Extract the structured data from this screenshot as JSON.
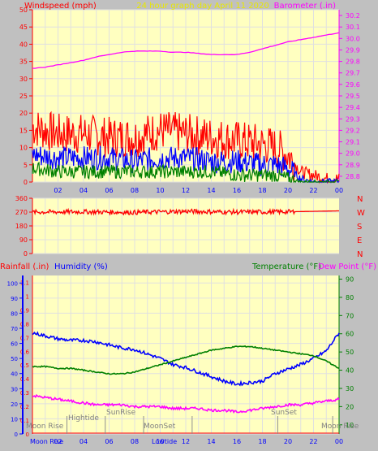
{
  "header": {
    "left_label": "Windspeed (mph)",
    "center_title": "24 hour graph day   April 11 2020",
    "right_label": "Barometer (.in)"
  },
  "middle_panel": {
    "direction_letters": [
      "N",
      "W",
      "S",
      "E",
      "N"
    ]
  },
  "lower_header": {
    "rainfall_label": "Rainfall (.in)",
    "humidity_label": "Humidity (%)",
    "temperature_label": "Temperature (°F)",
    "dewpoint_label": "Dew Point (°F)"
  },
  "events": {
    "moonrise": "Moon Rise",
    "hightide": "Hightide",
    "sunrise": "SunRise",
    "moonset": "MoonSet",
    "sunset": "SunSet",
    "moonrise_right": "Moon Rise",
    "bottom_moonrise": "Moon Rise",
    "bottom_lowtide": "Lowtide"
  },
  "colors": {
    "panel_bg": "#ffffc0",
    "window_bg": "#c0c0c0",
    "grid": "#e0e0e0",
    "windspeed": "#ff0000",
    "wind_avg": "#0000ff",
    "wind_min": "#008000",
    "barometer": "#ff00ff",
    "direction": "#ff0000",
    "humidity": "#0000ff",
    "temperature": "#008000",
    "dewpoint": "#ff00ff",
    "rainfall": "#ff0000"
  },
  "chart_data": [
    {
      "type": "line",
      "name_top": "wind-barometer",
      "x_ticks": [
        "02",
        "04",
        "06",
        "08",
        "10",
        "12",
        "14",
        "16",
        "18",
        "20",
        "22",
        "00"
      ],
      "y_left_ticks": [
        0,
        5,
        10,
        15,
        20,
        25,
        30,
        35,
        40,
        45,
        50
      ],
      "y_left_range": [
        0,
        50
      ],
      "y_right_ticks": [
        28.8,
        28.9,
        29.0,
        29.1,
        29.2,
        29.3,
        29.4,
        29.5,
        29.6,
        29.7,
        29.8,
        29.9,
        30.0,
        30.1,
        30.2
      ],
      "y_right_range": [
        28.75,
        30.25
      ],
      "series": [
        {
          "x": [
            0,
            1,
            2,
            3,
            4,
            5,
            6,
            7,
            8,
            9,
            10,
            11,
            12,
            13,
            14,
            15,
            16,
            17,
            18,
            19,
            20,
            21,
            22,
            23,
            24
          ],
          "values": [
            29.74,
            29.75,
            29.77,
            29.79,
            29.81,
            29.84,
            29.86,
            29.88,
            29.89,
            29.89,
            29.89,
            29.88,
            29.88,
            29.87,
            29.86,
            29.86,
            29.86,
            29.88,
            29.91,
            29.94,
            29.97,
            29.99,
            30.01,
            30.03,
            30.05
          ]
        },
        {
          "x": [
            0,
            2,
            4,
            6,
            8,
            10,
            12,
            14,
            16,
            18,
            19,
            20,
            21,
            22,
            23,
            24
          ],
          "values": [
            16,
            14,
            14,
            13,
            13,
            15,
            14,
            13,
            12,
            11,
            10,
            8,
            3,
            2,
            1,
            1
          ]
        },
        {
          "x": [
            0,
            2,
            4,
            6,
            8,
            10,
            12,
            14,
            16,
            18,
            19,
            20,
            21,
            22,
            23,
            24
          ],
          "values": [
            8,
            7,
            7,
            7,
            6,
            7,
            7,
            6,
            6,
            5,
            5,
            4,
            1,
            0,
            0,
            0
          ]
        },
        {
          "x": [
            0,
            2,
            4,
            6,
            8,
            10,
            12,
            14,
            16,
            18,
            19,
            20,
            21,
            22,
            23,
            24
          ],
          "values": [
            4,
            3,
            3,
            3,
            3,
            3,
            3,
            3,
            2,
            2,
            2,
            1,
            0,
            0,
            0,
            0
          ]
        }
      ]
    },
    {
      "type": "line",
      "name_top": "wind-direction",
      "y_ticks": [
        0,
        90,
        180,
        270,
        360
      ],
      "y_range": [
        0,
        360
      ],
      "series": [
        {
          "x": [
            0,
            4,
            8,
            12,
            16,
            20,
            24
          ],
          "values": [
            270,
            272,
            268,
            275,
            270,
            272,
            278
          ]
        }
      ]
    },
    {
      "type": "line",
      "name_top": "humidity-temperature",
      "x_ticks": [
        "02",
        "04",
        "06",
        "08",
        "10",
        "12",
        "14",
        "16",
        "18",
        "20",
        "22",
        "00"
      ],
      "y_rain_ticks": [
        0,
        0.1,
        0.2,
        0.3,
        0.4,
        0.5,
        0.6,
        0.7,
        0.8,
        0.9,
        1.0,
        1.1
      ],
      "y_rain_range": [
        0,
        1.15
      ],
      "y_hum_ticks": [
        0,
        10,
        20,
        30,
        40,
        50,
        60,
        70,
        80,
        90,
        100
      ],
      "y_hum_range": [
        0,
        105
      ],
      "y_temp_ticks": [
        10,
        20,
        30,
        40,
        50,
        60,
        70,
        80,
        90
      ],
      "y_temp_range": [
        5,
        92
      ],
      "series": [
        {
          "x": [
            0,
            1,
            2,
            3,
            4,
            5,
            6,
            7,
            8,
            9,
            10,
            11,
            12,
            13,
            14,
            15,
            16,
            17,
            18,
            19,
            20,
            21,
            22,
            23,
            24
          ],
          "values": [
            67,
            65,
            63,
            62,
            62,
            61,
            59,
            57,
            56,
            53,
            50,
            46,
            44,
            41,
            38,
            35,
            33,
            34,
            35,
            40,
            43,
            46,
            50,
            55,
            67
          ]
        },
        {
          "x": [
            0,
            1,
            2,
            3,
            4,
            5,
            6,
            7,
            8,
            9,
            10,
            11,
            12,
            13,
            14,
            15,
            16,
            17,
            18,
            19,
            20,
            21,
            22,
            23,
            24
          ],
          "values": [
            42,
            42,
            41,
            41,
            40,
            39,
            38,
            38,
            39,
            41,
            43,
            45,
            47,
            49,
            51,
            52,
            53,
            53,
            52,
            51,
            50,
            49,
            48,
            45,
            41
          ]
        },
        {
          "x": [
            0,
            1,
            2,
            3,
            4,
            5,
            6,
            7,
            8,
            9,
            10,
            11,
            12,
            13,
            14,
            15,
            16,
            17,
            18,
            19,
            20,
            21,
            22,
            23,
            24
          ],
          "values": [
            26,
            25,
            24,
            23,
            22,
            21,
            21,
            21,
            20,
            20,
            20,
            19,
            19,
            19,
            18,
            18,
            17,
            18,
            19,
            20,
            21,
            21,
            22,
            23,
            24
          ]
        }
      ]
    }
  ]
}
